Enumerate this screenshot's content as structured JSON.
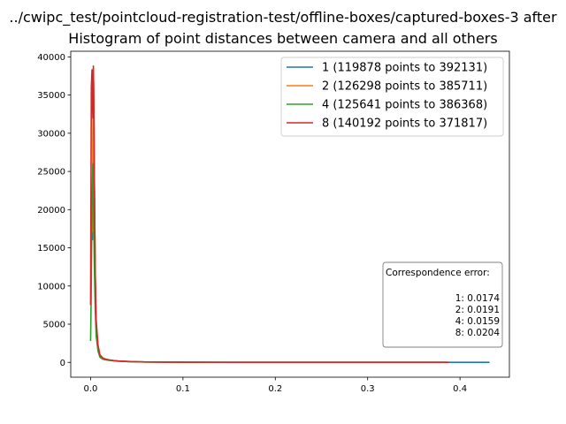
{
  "chart_data": {
    "type": "line",
    "title": "../cwipc_test/pointcloud-registration-test/offline-boxes/captured-boxes-3 after",
    "subtitle": "Histogram of point distances between camera and all others",
    "xlabel": "",
    "ylabel": "",
    "xlim": [
      -0.0215,
      0.4535
    ],
    "ylim": [
      -1940,
      40740
    ],
    "xticks": [
      0.0,
      0.1,
      0.2,
      0.3,
      0.4
    ],
    "xtick_labels": [
      "0.0",
      "0.1",
      "0.2",
      "0.3",
      "0.4"
    ],
    "yticks": [
      0,
      5000,
      10000,
      15000,
      20000,
      25000,
      30000,
      35000,
      40000
    ],
    "ytick_labels": [
      "0",
      "5000",
      "10000",
      "15000",
      "20000",
      "25000",
      "30000",
      "35000",
      "40000"
    ],
    "grid": false,
    "legend_position": "top-right",
    "series": [
      {
        "name": "1 (119878 points to 392131)",
        "color": "#1f77b4",
        "x": [
          0.002,
          0.0025,
          0.003,
          0.0035,
          0.004,
          0.005,
          0.006,
          0.008,
          0.01,
          0.013,
          0.016,
          0.02,
          0.025,
          0.03,
          0.04,
          0.05,
          0.06,
          0.08,
          0.1,
          0.15,
          0.2,
          0.3,
          0.4,
          0.432
        ],
        "y": [
          16000,
          30000,
          38000,
          33000,
          24000,
          11000,
          5000,
          2000,
          900,
          520,
          400,
          300,
          220,
          170,
          110,
          75,
          50,
          30,
          20,
          10,
          5,
          2,
          1,
          0
        ]
      },
      {
        "name": "2 (126298 points to 385711)",
        "color": "#ff7f0e",
        "x": [
          0.002,
          0.0025,
          0.003,
          0.0035,
          0.004,
          0.005,
          0.006,
          0.008,
          0.01,
          0.013,
          0.016,
          0.02,
          0.025,
          0.03,
          0.04,
          0.05,
          0.06,
          0.08,
          0.1,
          0.15,
          0.2,
          0.3,
          0.386
        ],
        "y": [
          17000,
          31000,
          38500,
          34000,
          25000,
          11500,
          5200,
          2100,
          950,
          540,
          410,
          310,
          230,
          175,
          115,
          78,
          52,
          31,
          20,
          10,
          5,
          2,
          0
        ]
      },
      {
        "name": "4 (125641 points to 386368)",
        "color": "#2ca02c",
        "x": [
          0.0,
          0.0005,
          0.001,
          0.0015,
          0.002,
          0.0025,
          0.003,
          0.004,
          0.005,
          0.006,
          0.008,
          0.01,
          0.013,
          0.016,
          0.02,
          0.025,
          0.03,
          0.04,
          0.05,
          0.06,
          0.08,
          0.1,
          0.15,
          0.2,
          0.3,
          0.386
        ],
        "y": [
          2800,
          7500,
          14000,
          20000,
          24000,
          26000,
          22000,
          13000,
          7000,
          3500,
          1500,
          700,
          420,
          330,
          260,
          200,
          150,
          100,
          70,
          48,
          29,
          19,
          9,
          5,
          2,
          0
        ]
      },
      {
        "name": "8 (140192 points to 371817)",
        "color": "#d62728",
        "x": [
          0.0,
          0.0008,
          0.0015,
          0.002,
          0.0025,
          0.003,
          0.0035,
          0.004,
          0.005,
          0.006,
          0.008,
          0.01,
          0.013,
          0.016,
          0.02,
          0.025,
          0.03,
          0.04,
          0.05,
          0.06,
          0.08,
          0.1,
          0.15,
          0.2,
          0.3,
          0.388
        ],
        "y": [
          7500,
          36000,
          38300,
          34000,
          32000,
          38800,
          34000,
          25000,
          12000,
          5600,
          2300,
          1000,
          580,
          440,
          330,
          240,
          185,
          120,
          80,
          54,
          32,
          21,
          10,
          5,
          2,
          0
        ]
      }
    ],
    "annotation": {
      "title": "Correspondence error:",
      "lines": [
        "1: 0.0174",
        "2: 0.0191",
        "4: 0.0159",
        "8: 0.0204"
      ]
    }
  }
}
